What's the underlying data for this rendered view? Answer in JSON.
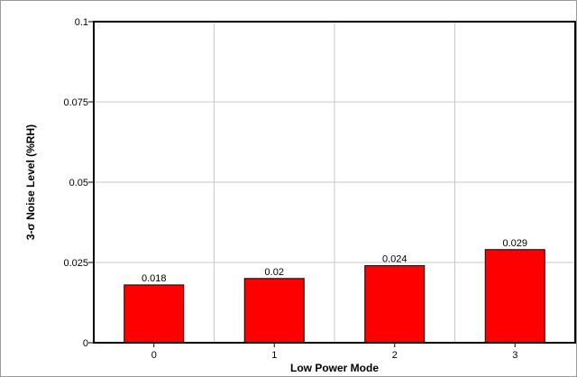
{
  "chart_data": {
    "type": "bar",
    "title": "",
    "xlabel": "Low Power Mode",
    "ylabel": "3-σ Noise Level (%RH)",
    "categories": [
      "0",
      "1",
      "2",
      "3"
    ],
    "values": [
      0.018,
      0.02,
      0.024,
      0.029
    ],
    "data_labels": [
      "0.018",
      "0.02",
      "0.024",
      "0.029"
    ],
    "ylim": [
      0,
      0.1
    ],
    "yticks": [
      0,
      0.025,
      0.05,
      0.075,
      0.1
    ],
    "ytick_labels": [
      "0",
      "0.025",
      "0.05",
      "0.075",
      "0.1"
    ],
    "grid": true,
    "legend": "none",
    "bar_color": "#ff0000",
    "bar_edge_color": "#000000",
    "grid_color": "#c8c8c8"
  }
}
